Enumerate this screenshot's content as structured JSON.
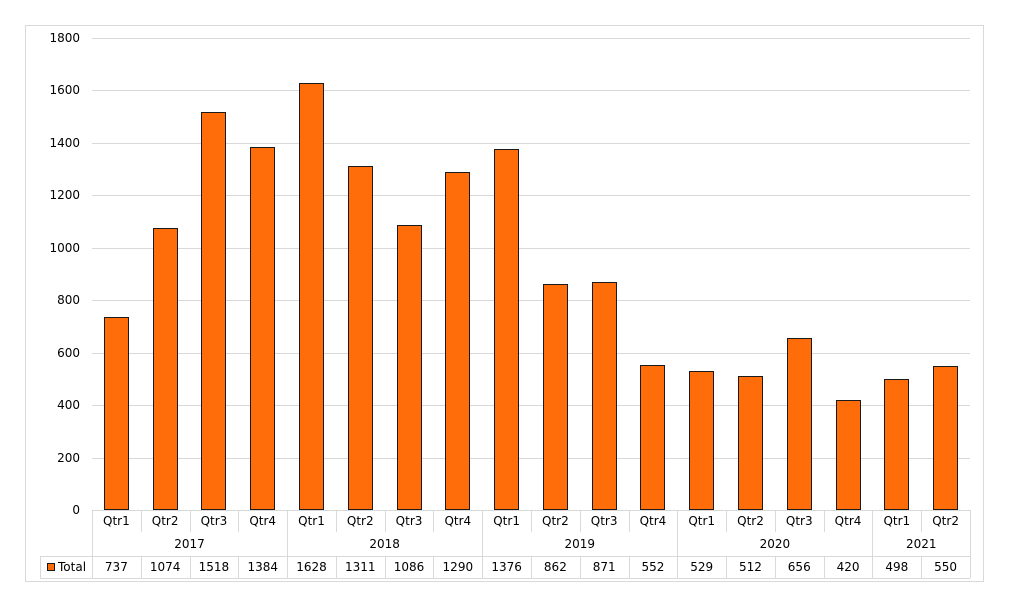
{
  "chart_data": {
    "type": "bar",
    "title": "",
    "xlabel": "",
    "ylabel": "",
    "ylim": [
      0,
      1800
    ],
    "yticks": [
      0,
      200,
      400,
      600,
      800,
      1000,
      1200,
      1400,
      1600,
      1800
    ],
    "grid": true,
    "legend_position": "data-table",
    "years": [
      {
        "label": "2017",
        "quarters": [
          "Qtr1",
          "Qtr2",
          "Qtr3",
          "Qtr4"
        ]
      },
      {
        "label": "2018",
        "quarters": [
          "Qtr1",
          "Qtr2",
          "Qtr3",
          "Qtr4"
        ]
      },
      {
        "label": "2019",
        "quarters": [
          "Qtr1",
          "Qtr2",
          "Qtr3",
          "Qtr4"
        ]
      },
      {
        "label": "2020",
        "quarters": [
          "Qtr1",
          "Qtr2",
          "Qtr3",
          "Qtr4"
        ]
      },
      {
        "label": "2021",
        "quarters": [
          "Qtr1",
          "Qtr2"
        ]
      }
    ],
    "categories": [
      "2017 Qtr1",
      "2017 Qtr2",
      "2017 Qtr3",
      "2017 Qtr4",
      "2018 Qtr1",
      "2018 Qtr2",
      "2018 Qtr3",
      "2018 Qtr4",
      "2019 Qtr1",
      "2019 Qtr2",
      "2019 Qtr3",
      "2019 Qtr4",
      "2020 Qtr1",
      "2020 Qtr2",
      "2020 Qtr3",
      "2020 Qtr4",
      "2021 Qtr1",
      "2021 Qtr2"
    ],
    "series": [
      {
        "name": "Total",
        "color": "#ff6d0a",
        "values": [
          737,
          1074,
          1518,
          1384,
          1628,
          1311,
          1086,
          1290,
          1376,
          862,
          871,
          552,
          529,
          512,
          656,
          420,
          498,
          550
        ]
      }
    ]
  },
  "legend": {
    "label": "Total"
  }
}
